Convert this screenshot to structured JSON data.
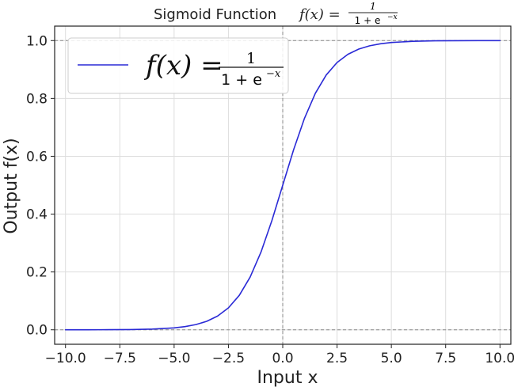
{
  "chart_data": {
    "type": "line",
    "title": "Sigmoid Function",
    "title_formula": {
      "lhs": "f(x) =",
      "numerator": "1",
      "denominator": "1 + e",
      "exponent": "−x"
    },
    "xlabel": "Input x",
    "ylabel": "Output f(x)",
    "xlim": [
      -10.5,
      10.5
    ],
    "ylim": [
      -0.05,
      1.05
    ],
    "x_ticks": [
      -10,
      -7.5,
      -5,
      -2.5,
      0,
      2.5,
      5,
      7.5,
      10
    ],
    "x_tick_labels": [
      "−10.0",
      "−7.5",
      "−5.0",
      "−2.5",
      "0.0",
      "2.5",
      "5.0",
      "7.5",
      "10.0"
    ],
    "y_ticks": [
      0,
      0.2,
      0.4,
      0.6,
      0.8,
      1.0
    ],
    "y_tick_labels": [
      "0.0",
      "0.2",
      "0.4",
      "0.6",
      "0.8",
      "1.0"
    ],
    "grid": true,
    "reference_lines": {
      "vertical_x": 0,
      "horizontal_y": [
        0,
        1
      ]
    },
    "series": [
      {
        "name": "f(x) = 1 / (1 + e^(−x))",
        "legend_formula": {
          "lhs": "f(x) =",
          "numerator": "1",
          "denominator": "1 + e",
          "exponent": "−x"
        },
        "color": "#2a2ad6",
        "x": [
          -10,
          -9,
          -8,
          -7,
          -6,
          -5,
          -4.5,
          -4,
          -3.5,
          -3,
          -2.5,
          -2,
          -1.5,
          -1,
          -0.5,
          0,
          0.5,
          1,
          1.5,
          2,
          2.5,
          3,
          3.5,
          4,
          4.5,
          5,
          6,
          7,
          8,
          9,
          10
        ],
        "y": [
          5e-05,
          0.00012,
          0.00034,
          0.00091,
          0.00247,
          0.0067,
          0.011,
          0.018,
          0.0293,
          0.0474,
          0.0759,
          0.1192,
          0.1824,
          0.2689,
          0.3775,
          0.5,
          0.6225,
          0.7311,
          0.8176,
          0.8808,
          0.9241,
          0.9526,
          0.9707,
          0.982,
          0.989,
          0.9933,
          0.99753,
          0.99909,
          0.99966,
          0.99988,
          0.99995
        ]
      }
    ],
    "legend_location": "upper-left"
  },
  "colors": {
    "line": "#2a2ad6",
    "grid": "#dddddd",
    "reference": "#888888",
    "axis": "#222222"
  }
}
